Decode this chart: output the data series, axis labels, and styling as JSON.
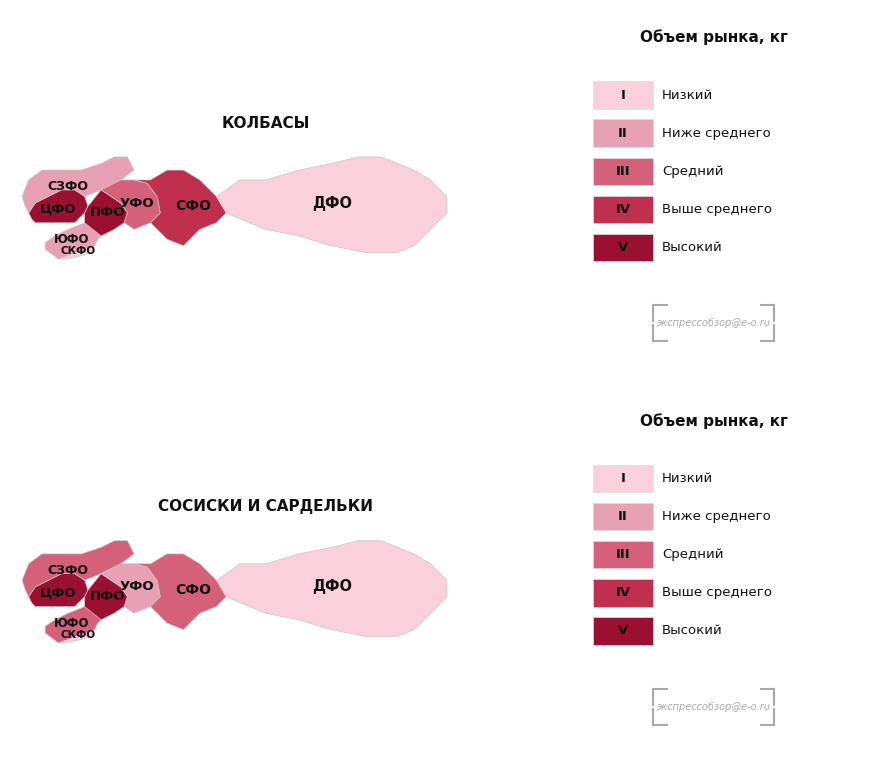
{
  "title1": "КОЛБАСЫ",
  "title2": "СОСИСКИ И САРДЕЛЬКИ",
  "legend_title": "Объем рынка, кг",
  "legend_levels": [
    "I",
    "II",
    "III",
    "IV",
    "V"
  ],
  "legend_labels": [
    "Низкий",
    "Ниже среднего",
    "Средний",
    "Выше среднего",
    "Высокий"
  ],
  "colors": {
    "I": "#f9d0dc",
    "II": "#e8a0b4",
    "III": "#d4607a",
    "IV": "#c0304e",
    "V": "#9b1030"
  },
  "kolbasy_regions": {
    "ЦФО": "V",
    "СЗФО": "II",
    "ЮФО": "II",
    "СКФО": "I",
    "ПФО": "V",
    "УФО": "III",
    "СФО": "IV",
    "ДФО": "I"
  },
  "sosiski_regions": {
    "ЦФО": "V",
    "СЗФО": "III",
    "ЮФО": "III",
    "СКФО": "I",
    "ПФО": "V",
    "УФО": "II",
    "СФО": "III",
    "ДФО": "I"
  },
  "bg_color": "#ffffff",
  "label_color": "#111111",
  "border_color": "#c8c8c8",
  "watermark_color": "#aaaaaa",
  "watermark_text": "экспрессобзор@е-о.ru"
}
